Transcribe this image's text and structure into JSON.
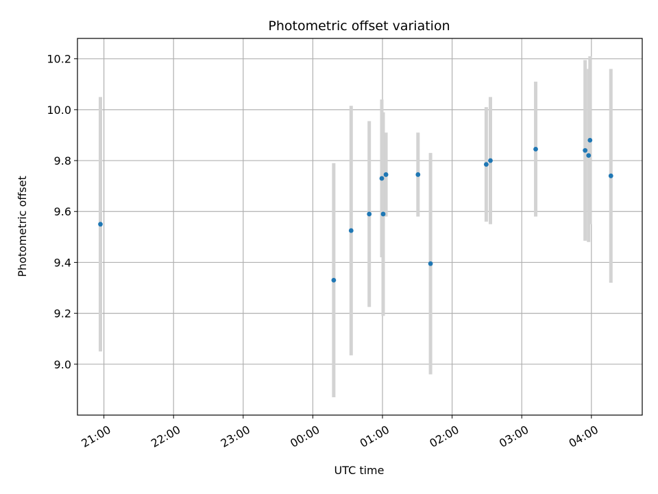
{
  "chart_data": {
    "type": "scatter",
    "title": "Photometric offset variation",
    "xlabel": "UTC time",
    "ylabel": "Photometric offset",
    "grid": true,
    "point_color": "#1f77b4",
    "errorbar_color": "#d3d3d3",
    "x_unit": "hours relative to 00:00 UTC",
    "xlim": [
      -3.38,
      4.73
    ],
    "ylim": [
      8.8,
      10.28
    ],
    "x_ticks": [
      {
        "value": -3,
        "label": "21:00"
      },
      {
        "value": -2,
        "label": "22:00"
      },
      {
        "value": -1,
        "label": "23:00"
      },
      {
        "value": 0,
        "label": "00:00"
      },
      {
        "value": 1,
        "label": "01:00"
      },
      {
        "value": 2,
        "label": "02:00"
      },
      {
        "value": 3,
        "label": "03:00"
      },
      {
        "value": 4,
        "label": "04:00"
      }
    ],
    "y_ticks": [
      {
        "value": 9.0,
        "label": "9.0"
      },
      {
        "value": 9.2,
        "label": "9.2"
      },
      {
        "value": 9.4,
        "label": "9.4"
      },
      {
        "value": 9.6,
        "label": "9.6"
      },
      {
        "value": 9.8,
        "label": "9.8"
      },
      {
        "value": 10.0,
        "label": "10.0"
      },
      {
        "value": 10.2,
        "label": "10.2"
      }
    ],
    "points": [
      {
        "t": "20:57",
        "x": -3.05,
        "y": 9.55,
        "err": 0.5
      },
      {
        "t": "00:18",
        "x": 0.3,
        "y": 9.33,
        "err": 0.46
      },
      {
        "t": "00:33",
        "x": 0.55,
        "y": 9.525,
        "err": 0.49
      },
      {
        "t": "00:49",
        "x": 0.81,
        "y": 9.59,
        "err": 0.365
      },
      {
        "t": "00:59",
        "x": 0.99,
        "y": 9.73,
        "err": 0.31
      },
      {
        "t": "01:00",
        "x": 1.01,
        "y": 9.59,
        "err": 0.4
      },
      {
        "t": "01:03",
        "x": 1.05,
        "y": 9.745,
        "err": 0.165
      },
      {
        "t": "01:30",
        "x": 1.51,
        "y": 9.745,
        "err": 0.165
      },
      {
        "t": "01:41",
        "x": 1.69,
        "y": 9.395,
        "err": 0.435
      },
      {
        "t": "02:29",
        "x": 2.49,
        "y": 9.785,
        "err": 0.225
      },
      {
        "t": "02:33",
        "x": 2.55,
        "y": 9.8,
        "err": 0.25
      },
      {
        "t": "03:12",
        "x": 3.2,
        "y": 9.845,
        "err": 0.265
      },
      {
        "t": "03:55",
        "x": 3.91,
        "y": 9.84,
        "err": 0.355
      },
      {
        "t": "03:58",
        "x": 3.96,
        "y": 9.82,
        "err": 0.34
      },
      {
        "t": "03:59",
        "x": 3.98,
        "y": 9.88,
        "err": 0.33
      },
      {
        "t": "04:17",
        "x": 4.28,
        "y": 9.74,
        "err": 0.42
      }
    ]
  }
}
